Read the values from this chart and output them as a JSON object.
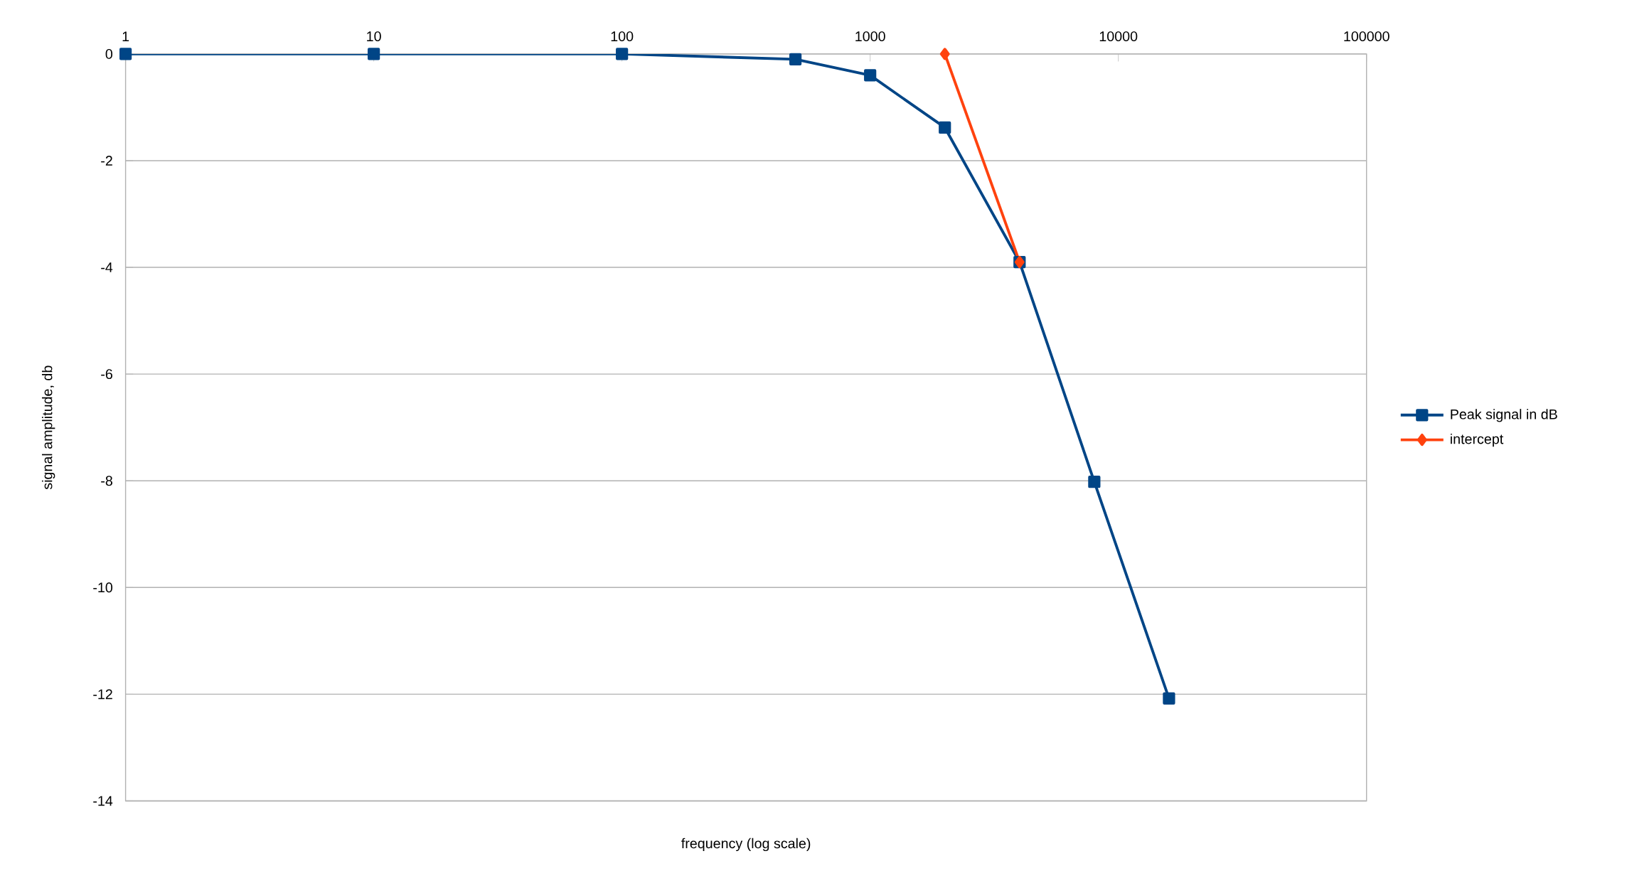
{
  "chart_data": {
    "type": "line",
    "xlabel": "frequency (log scale)",
    "ylabel": "signal amplitude, db",
    "log": "x",
    "xlim": [
      1,
      100000
    ],
    "xticks": [
      1,
      10,
      100,
      1000,
      10000,
      100000
    ],
    "ylim": [
      -14,
      0
    ],
    "yticks": [
      -14,
      -12,
      -10,
      -8,
      -6,
      -4,
      -2,
      0
    ],
    "grid": "y",
    "legend": "right",
    "line_style": "solid",
    "series": [
      {
        "name": "Peak signal in dB",
        "color": "#004586",
        "marker": "square",
        "x": [
          1,
          10,
          100,
          500,
          1000,
          2000,
          4000,
          8000,
          16000
        ],
        "values": [
          0,
          0,
          0,
          -0.1,
          -0.4,
          -1.38,
          -3.9,
          -8.02,
          -12.08
        ]
      },
      {
        "name": "intercept",
        "color": "#ff420e",
        "marker": "diamond",
        "x": [
          2000,
          4000
        ],
        "values": [
          0,
          -3.9
        ]
      }
    ]
  }
}
